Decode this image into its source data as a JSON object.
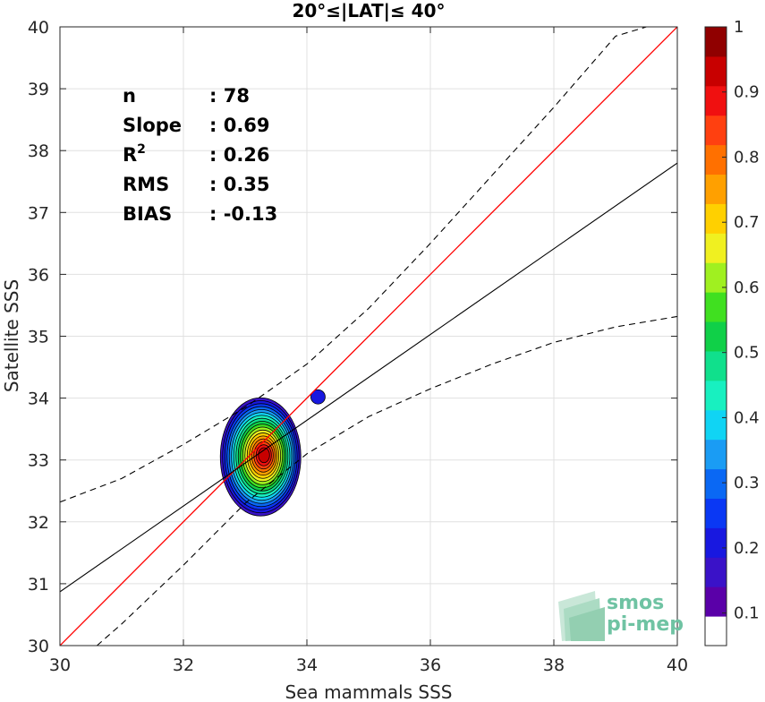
{
  "chart_data": {
    "type": "heatmap",
    "title": "20°≤|LAT|≤ 40°",
    "xlabel": "Sea mammals SSS",
    "ylabel": "Satellite SSS",
    "xlim": [
      30,
      40
    ],
    "ylim": [
      30,
      40
    ],
    "x_ticks": [
      "30",
      "32",
      "34",
      "36",
      "38",
      "40"
    ],
    "y_ticks": [
      "30",
      "31",
      "32",
      "33",
      "34",
      "35",
      "36",
      "37",
      "38",
      "39",
      "40"
    ],
    "grid": true,
    "stats": [
      {
        "label": "n",
        "value": ": 78"
      },
      {
        "label": "Slope",
        "value": ": 0.69"
      },
      {
        "label": "R",
        "sup": "2",
        "value": ": 0.26"
      },
      {
        "label": "RMS",
        "value": ": 0.35"
      },
      {
        "label": "BIAS",
        "value": ": -0.13"
      }
    ],
    "identity_line": {
      "color": "#ff0000",
      "slope": 1,
      "intercept": 0
    },
    "regression_line": {
      "color": "#000000",
      "points": [
        [
          30,
          30.87
        ],
        [
          40,
          37.8
        ]
      ]
    },
    "confidence_upper": [
      [
        30,
        32.32
      ],
      [
        31,
        32.7
      ],
      [
        32,
        33.25
      ],
      [
        33,
        33.85
      ],
      [
        34,
        34.55
      ],
      [
        35,
        35.45
      ],
      [
        36,
        36.5
      ],
      [
        37,
        37.6
      ],
      [
        38,
        38.7
      ],
      [
        39,
        39.85
      ],
      [
        39.5,
        40
      ]
    ],
    "confidence_lower": [
      [
        30.6,
        30
      ],
      [
        31,
        30.35
      ],
      [
        32,
        31.3
      ],
      [
        33,
        32.3
      ],
      [
        34,
        33.1
      ],
      [
        35,
        33.7
      ],
      [
        36,
        34.15
      ],
      [
        37,
        34.55
      ],
      [
        38,
        34.9
      ],
      [
        39,
        35.15
      ],
      [
        40,
        35.32
      ]
    ],
    "density_center": [
      33.25,
      33.05
    ],
    "density_peak": 1.0,
    "secondary_blob": {
      "x": 34.18,
      "y": 34.02,
      "value": 0.2
    },
    "colorbar": {
      "ticks": [
        "0.1",
        "0.2",
        "0.3",
        "0.4",
        "0.5",
        "0.6",
        "0.7",
        "0.8",
        "0.9",
        "1"
      ],
      "colors": [
        "#ffffff",
        "#5a00a8",
        "#3a12c8",
        "#1818e0",
        "#0a38f4",
        "#0a68f4",
        "#1a9cf4",
        "#10d4f4",
        "#18f0c0",
        "#10e08c",
        "#10d048",
        "#40e020",
        "#a0f020",
        "#f0f020",
        "#ffd000",
        "#ffa000",
        "#ff7000",
        "#ff4010",
        "#f01010",
        "#c80000",
        "#900000"
      ]
    },
    "colors": {
      "identity": "#ff0000",
      "regression": "#000000",
      "confidence": "#000000",
      "grid": "#e0e0e0"
    }
  },
  "logo": {
    "line1": "smos",
    "line2": "pi-mep"
  }
}
